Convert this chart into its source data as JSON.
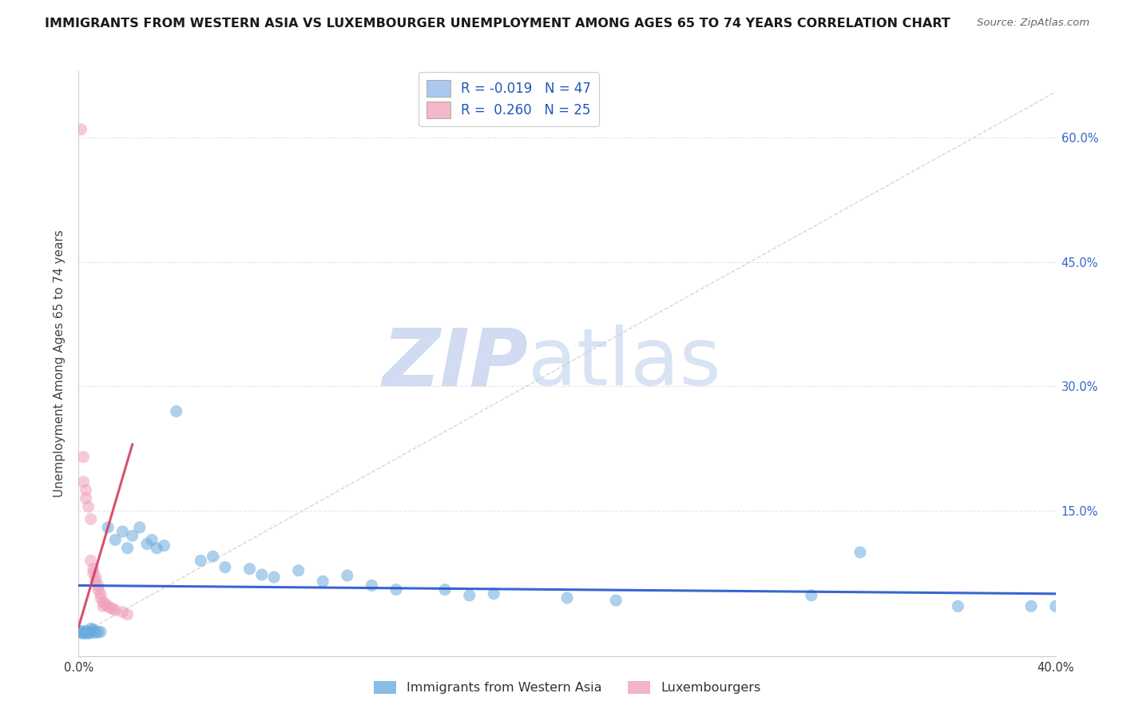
{
  "title": "IMMIGRANTS FROM WESTERN ASIA VS LUXEMBOURGER UNEMPLOYMENT AMONG AGES 65 TO 74 YEARS CORRELATION CHART",
  "source": "Source: ZipAtlas.com",
  "ylabel": "Unemployment Among Ages 65 to 74 years",
  "xlim": [
    0.0,
    0.4
  ],
  "ylim": [
    -0.025,
    0.68
  ],
  "y_ticks": [
    0.15,
    0.3,
    0.45,
    0.6
  ],
  "y_tick_labels": [
    "15.0%",
    "30.0%",
    "45.0%",
    "60.0%"
  ],
  "x_ticks": [
    0.0,
    0.4
  ],
  "x_tick_labels": [
    "0.0%",
    "40.0%"
  ],
  "legend_entries": [
    {
      "label": "R = -0.019   N = 47",
      "color": "#adc8f0"
    },
    {
      "label": "R =  0.260   N = 25",
      "color": "#f4b8c8"
    }
  ],
  "legend_bottom": [
    "Immigrants from Western Asia",
    "Luxembourgers"
  ],
  "blue_scatter": [
    [
      0.001,
      0.005
    ],
    [
      0.001,
      0.003
    ],
    [
      0.002,
      0.004
    ],
    [
      0.002,
      0.002
    ],
    [
      0.003,
      0.005
    ],
    [
      0.003,
      0.003
    ],
    [
      0.004,
      0.004
    ],
    [
      0.004,
      0.002
    ],
    [
      0.005,
      0.003
    ],
    [
      0.005,
      0.008
    ],
    [
      0.006,
      0.005
    ],
    [
      0.006,
      0.007
    ],
    [
      0.007,
      0.003
    ],
    [
      0.008,
      0.004
    ],
    [
      0.009,
      0.004
    ],
    [
      0.012,
      0.13
    ],
    [
      0.015,
      0.115
    ],
    [
      0.018,
      0.125
    ],
    [
      0.02,
      0.105
    ],
    [
      0.022,
      0.12
    ],
    [
      0.025,
      0.13
    ],
    [
      0.028,
      0.11
    ],
    [
      0.03,
      0.115
    ],
    [
      0.032,
      0.105
    ],
    [
      0.035,
      0.108
    ],
    [
      0.04,
      0.27
    ],
    [
      0.05,
      0.09
    ],
    [
      0.055,
      0.095
    ],
    [
      0.06,
      0.082
    ],
    [
      0.07,
      0.08
    ],
    [
      0.075,
      0.073
    ],
    [
      0.08,
      0.07
    ],
    [
      0.09,
      0.078
    ],
    [
      0.1,
      0.065
    ],
    [
      0.11,
      0.072
    ],
    [
      0.12,
      0.06
    ],
    [
      0.13,
      0.055
    ],
    [
      0.15,
      0.055
    ],
    [
      0.16,
      0.048
    ],
    [
      0.17,
      0.05
    ],
    [
      0.2,
      0.045
    ],
    [
      0.22,
      0.042
    ],
    [
      0.3,
      0.048
    ],
    [
      0.32,
      0.1
    ],
    [
      0.36,
      0.035
    ],
    [
      0.39,
      0.035
    ],
    [
      0.4,
      0.035
    ]
  ],
  "pink_scatter": [
    [
      0.001,
      0.61
    ],
    [
      0.002,
      0.215
    ],
    [
      0.002,
      0.185
    ],
    [
      0.003,
      0.165
    ],
    [
      0.003,
      0.175
    ],
    [
      0.004,
      0.155
    ],
    [
      0.005,
      0.14
    ],
    [
      0.005,
      0.09
    ],
    [
      0.006,
      0.08
    ],
    [
      0.006,
      0.075
    ],
    [
      0.007,
      0.07
    ],
    [
      0.007,
      0.065
    ],
    [
      0.008,
      0.06
    ],
    [
      0.008,
      0.055
    ],
    [
      0.009,
      0.05
    ],
    [
      0.009,
      0.045
    ],
    [
      0.01,
      0.04
    ],
    [
      0.01,
      0.035
    ],
    [
      0.011,
      0.038
    ],
    [
      0.012,
      0.035
    ],
    [
      0.013,
      0.033
    ],
    [
      0.014,
      0.032
    ],
    [
      0.015,
      0.03
    ],
    [
      0.018,
      0.028
    ],
    [
      0.02,
      0.025
    ]
  ],
  "blue_trendline": {
    "x": [
      0.0,
      0.4
    ],
    "y": [
      0.06,
      0.05
    ]
  },
  "pink_trendline": {
    "x": [
      0.0,
      0.022
    ],
    "y": [
      0.01,
      0.23
    ]
  },
  "diag_line": {
    "x": [
      0.0,
      0.4
    ],
    "y": [
      0.0,
      0.655
    ]
  },
  "scatter_size": 120,
  "scatter_alpha": 0.55,
  "blue_color": "#6aabdf",
  "pink_color": "#f0a0bc",
  "blue_trendline_color": "#2255cc",
  "pink_trendline_color": "#d04060",
  "dashed_line_color": "#cccccc",
  "background_color": "#ffffff",
  "grid_color": "#e8e8e8",
  "watermark_zip_color": "#ccd8f0",
  "watermark_atlas_color": "#b8ccec",
  "title_fontsize": 11.5,
  "ylabel_fontsize": 11,
  "tick_fontsize": 10.5,
  "source_fontsize": 9.5
}
